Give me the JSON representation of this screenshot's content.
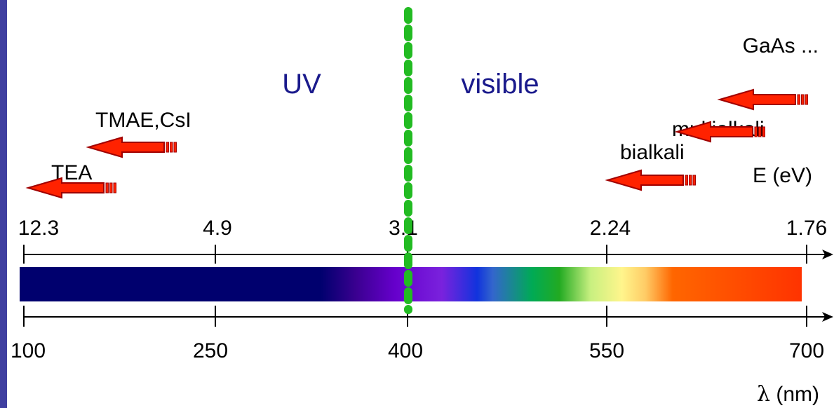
{
  "regions": {
    "uv": "UV",
    "visible": "visible"
  },
  "colors": {
    "accent_bar": "#3f3fa0",
    "divider": "#22bb22",
    "region_text": "#1a1a8c",
    "arrow": "#ff2200",
    "arrow_outline": "#a00000"
  },
  "energy_axis": {
    "label_symbol": "E",
    "label_unit": " (eV)",
    "ticks": [
      "12.3",
      "4.9",
      "3.1",
      "2.24",
      "1.76"
    ]
  },
  "wavelength_axis": {
    "label_symbol": "λ",
    "label_unit": " (nm)",
    "ticks": [
      "100",
      "250",
      "400",
      "550",
      "700"
    ]
  },
  "materials": [
    {
      "name": "GaAs ...",
      "cutoff_nm": 700
    },
    {
      "name": "multialkali",
      "cutoff_nm": 650
    },
    {
      "name": "bialkali",
      "cutoff_nm": 550
    },
    {
      "name": "TMAE,CsI",
      "cutoff_nm": 150
    },
    {
      "name": "TEA",
      "cutoff_nm": 100
    }
  ],
  "divider_nm": 400
}
